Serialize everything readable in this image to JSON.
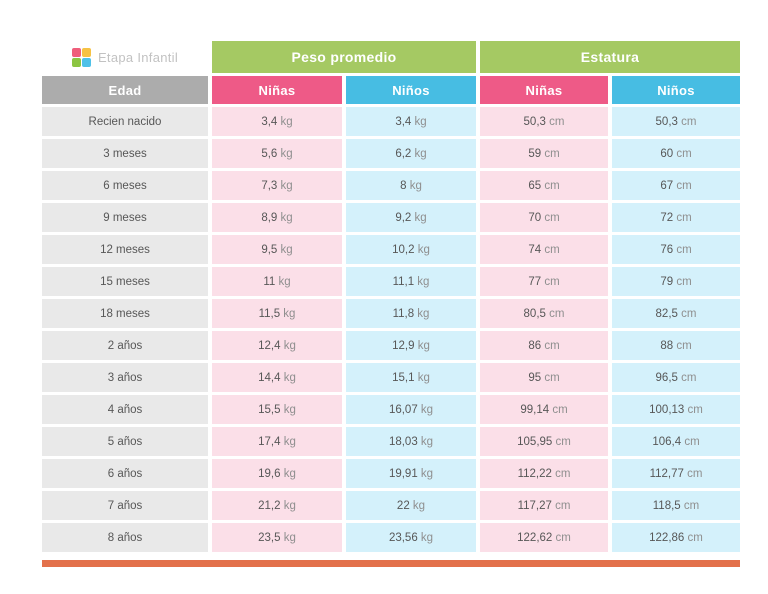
{
  "brand": {
    "name": "Etapa Infantil",
    "logo_colors": [
      "#ef5e7b",
      "#f6c244",
      "#8cc542",
      "#4ec1e8"
    ]
  },
  "table": {
    "group_headers": {
      "peso": "Peso promedio",
      "estatura": "Estatura"
    },
    "columns": {
      "edad": "Edad",
      "ninas": "Niñas",
      "ninos": "Niños"
    }
  },
  "colors": {
    "group_header_green": "#a5c963",
    "girls_pink": "#ee5a87",
    "boys_blue": "#47bde3",
    "age_header_gray": "#acacac",
    "row_gray": "#e9e9e9",
    "row_pink": "#fbdfe8",
    "row_blue": "#d4f1fb",
    "accent_orange": "#e3714b"
  },
  "chart_data": {
    "type": "table",
    "title": "",
    "column_groups": [
      "Peso promedio",
      "Estatura"
    ],
    "columns": [
      "Edad",
      "Peso promedio Niñas",
      "Peso promedio Niños",
      "Estatura Niñas",
      "Estatura Niños"
    ],
    "rows": [
      [
        "Recien nacido",
        "3,4 kg",
        "3,4 kg",
        "50,3 cm",
        "50,3 cm"
      ],
      [
        "3 meses",
        "5,6 kg",
        "6,2 kg",
        "59 cm",
        "60 cm"
      ],
      [
        "6 meses",
        "7,3 kg",
        "8 kg",
        "65 cm",
        "67 cm"
      ],
      [
        "9 meses",
        "8,9 kg",
        "9,2 kg",
        "70 cm",
        "72 cm"
      ],
      [
        "12 meses",
        "9,5 kg",
        "10,2 kg",
        "74 cm",
        "76 cm"
      ],
      [
        "15 meses",
        "11 kg",
        "11,1 kg",
        "77 cm",
        "79 cm"
      ],
      [
        "18 meses",
        "11,5 kg",
        "11,8 kg",
        "80,5 cm",
        "82,5 cm"
      ],
      [
        "2 años",
        "12,4 kg",
        "12,9 kg",
        "86 cm",
        "88 cm"
      ],
      [
        "3 años",
        "14,4 kg",
        "15,1 kg",
        "95 cm",
        "96,5 cm"
      ],
      [
        "4 años",
        "15,5 kg",
        "16,07 kg",
        "99,14 cm",
        "100,13 cm"
      ],
      [
        "5 años",
        "17,4 kg",
        "18,03 kg",
        "105,95 cm",
        "106,4 cm"
      ],
      [
        "6 años",
        "19,6 kg",
        "19,91 kg",
        "112,22 cm",
        "112,77 cm"
      ],
      [
        "7 años",
        "21,2 kg",
        "22 kg",
        "117,27 cm",
        "118,5 cm"
      ],
      [
        "8 años",
        "23,5 kg",
        "23,56 kg",
        "122,62 cm",
        "122,86 cm"
      ]
    ]
  }
}
